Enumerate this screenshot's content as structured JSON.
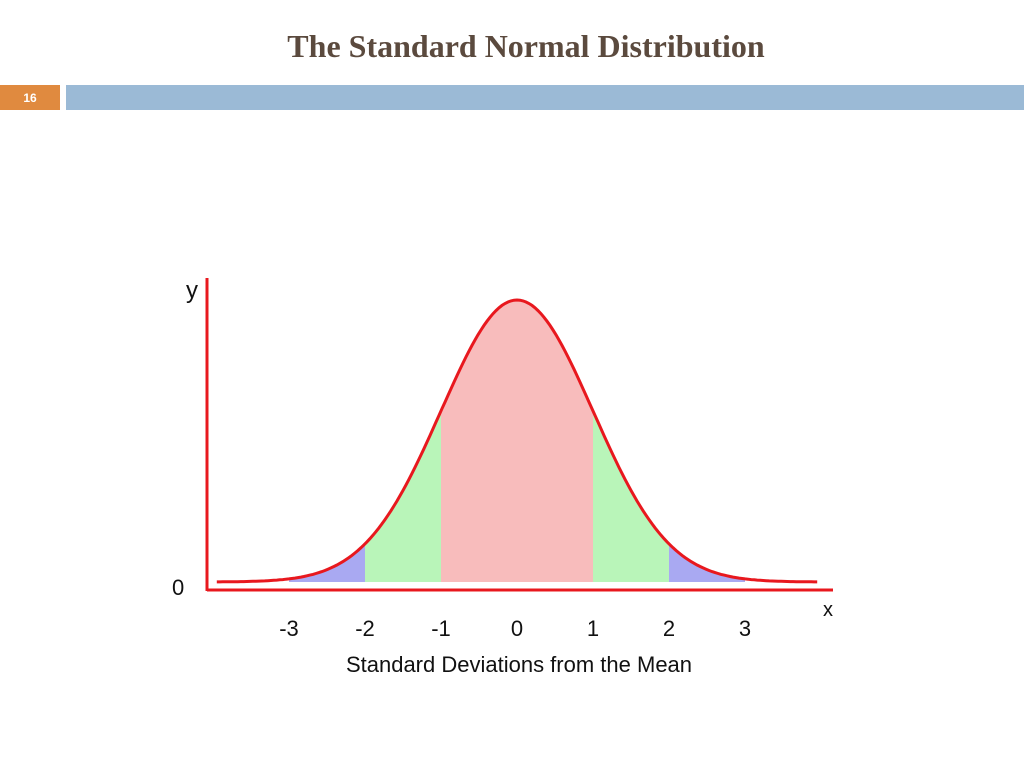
{
  "slide": {
    "title": "The Standard Normal Distribution",
    "number": "16",
    "colors": {
      "title": "#5b4a3e",
      "number_box": "#e08a3f",
      "header_bar": "#9bbad6"
    }
  },
  "chart_data": {
    "type": "area",
    "title": "",
    "xlabel": "Standard Deviations from the Mean",
    "ylabel": "y",
    "x_axis_letter": "x",
    "y_origin_label": "0",
    "x_ticks": [
      -3,
      -2,
      -1,
      0,
      1,
      2,
      3
    ],
    "xlim": [
      -4,
      4
    ],
    "ylim": [
      0,
      0.4
    ],
    "distribution": {
      "mean": 0,
      "sd": 1
    },
    "grid": false,
    "legend": "none",
    "regions": [
      {
        "from": -3,
        "to": -2,
        "color": "#a9a9f2"
      },
      {
        "from": -2,
        "to": -1,
        "color": "#b9f5b9"
      },
      {
        "from": -1,
        "to": 1,
        "color": "#f8bcbc"
      },
      {
        "from": 1,
        "to": 2,
        "color": "#b9f5b9"
      },
      {
        "from": 2,
        "to": 3,
        "color": "#a9a9f2"
      }
    ],
    "curve_color": "#e8181e",
    "axis_color": "#e8181e"
  }
}
